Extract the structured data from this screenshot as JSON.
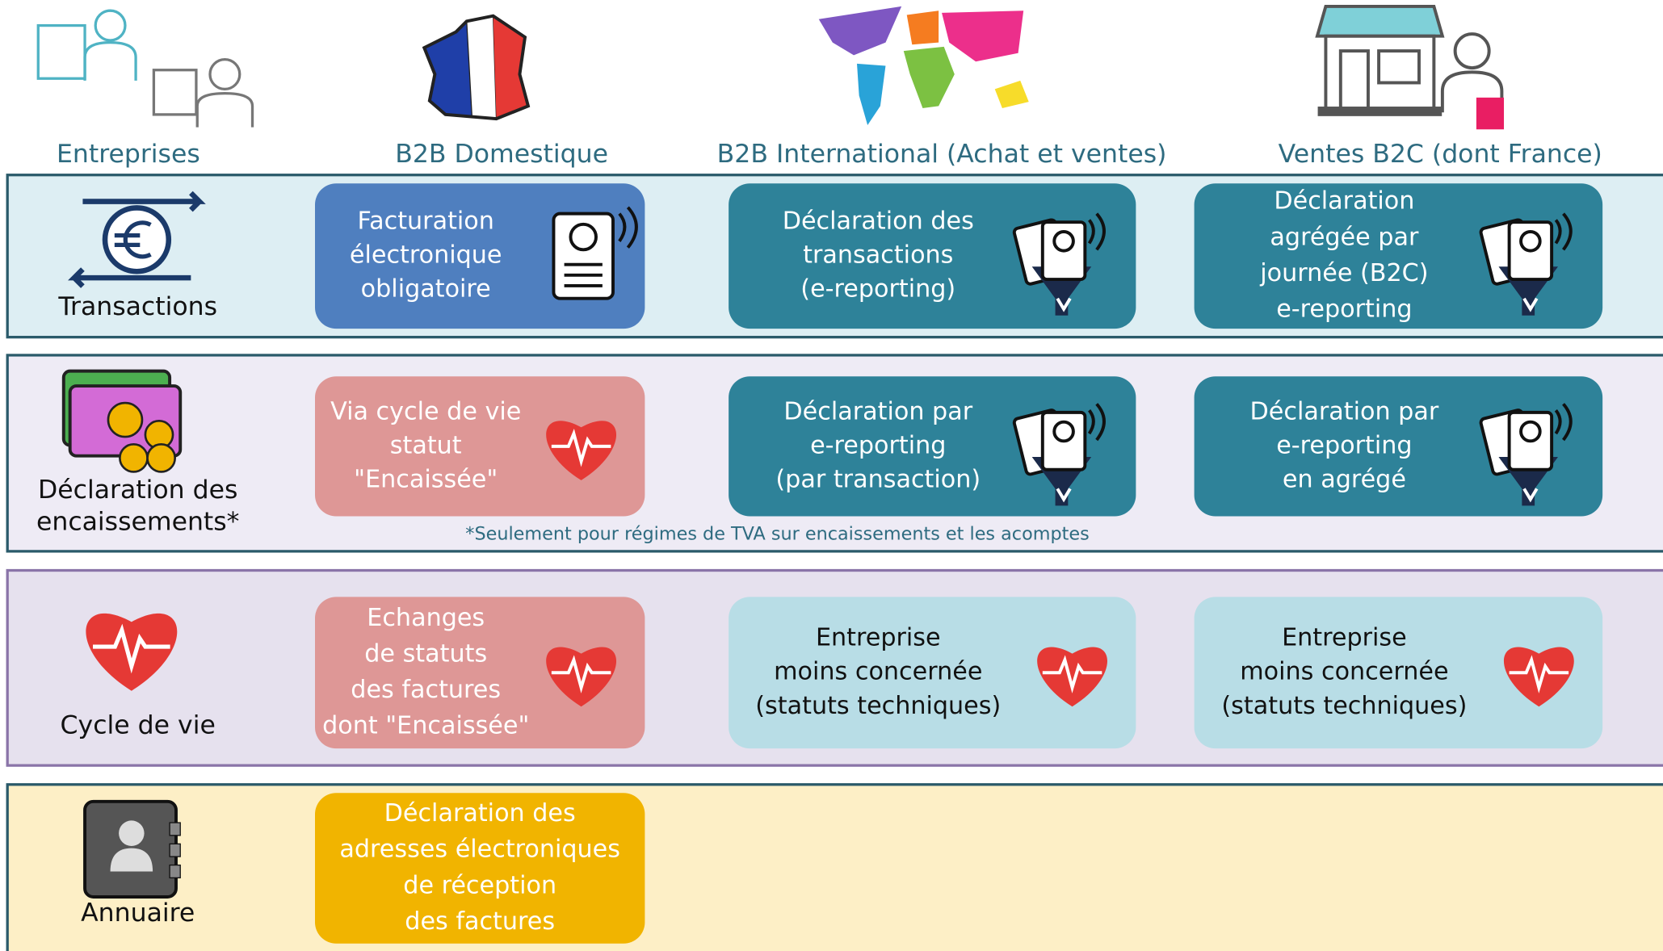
{
  "columns": [
    "Entreprises",
    "B2B Domestique",
    "B2B International (Achat et ventes)",
    "Ventes B2C (dont France)"
  ],
  "rows": [
    {
      "label": [
        "Transactions"
      ],
      "cells": [
        [
          "Facturation",
          "électronique",
          "obligatoire"
        ],
        [
          "Déclaration des",
          "transactions",
          "(e-reporting)"
        ],
        [
          "Déclaration",
          "agrégée par",
          "journée (B2C)",
          "e-reporting"
        ]
      ]
    },
    {
      "label": [
        "Déclaration des",
        "encaissements*"
      ],
      "cells": [
        [
          "Via cycle de vie",
          "statut",
          "\"Encaissée\""
        ],
        [
          "Déclaration par",
          "e-reporting",
          "(par transaction)"
        ],
        [
          "Déclaration par",
          "e-reporting",
          "en agrégé"
        ]
      ]
    },
    {
      "label": [
        "Cycle de vie"
      ],
      "cells": [
        [
          "Echanges",
          "de statuts",
          "des factures",
          "dont \"Encaissée\""
        ],
        [
          "Entreprise",
          "moins concernée",
          "(statuts techniques)"
        ],
        [
          "Entreprise",
          "moins concernée",
          "(statuts techniques)"
        ]
      ]
    },
    {
      "label": [
        "Annuaire"
      ],
      "cells": [
        [
          "Déclaration des",
          "adresses électroniques",
          "de réception",
          "des factures"
        ]
      ]
    }
  ],
  "footnote": "*Seulement pour régimes de TVA sur encaissements et les acomptes"
}
